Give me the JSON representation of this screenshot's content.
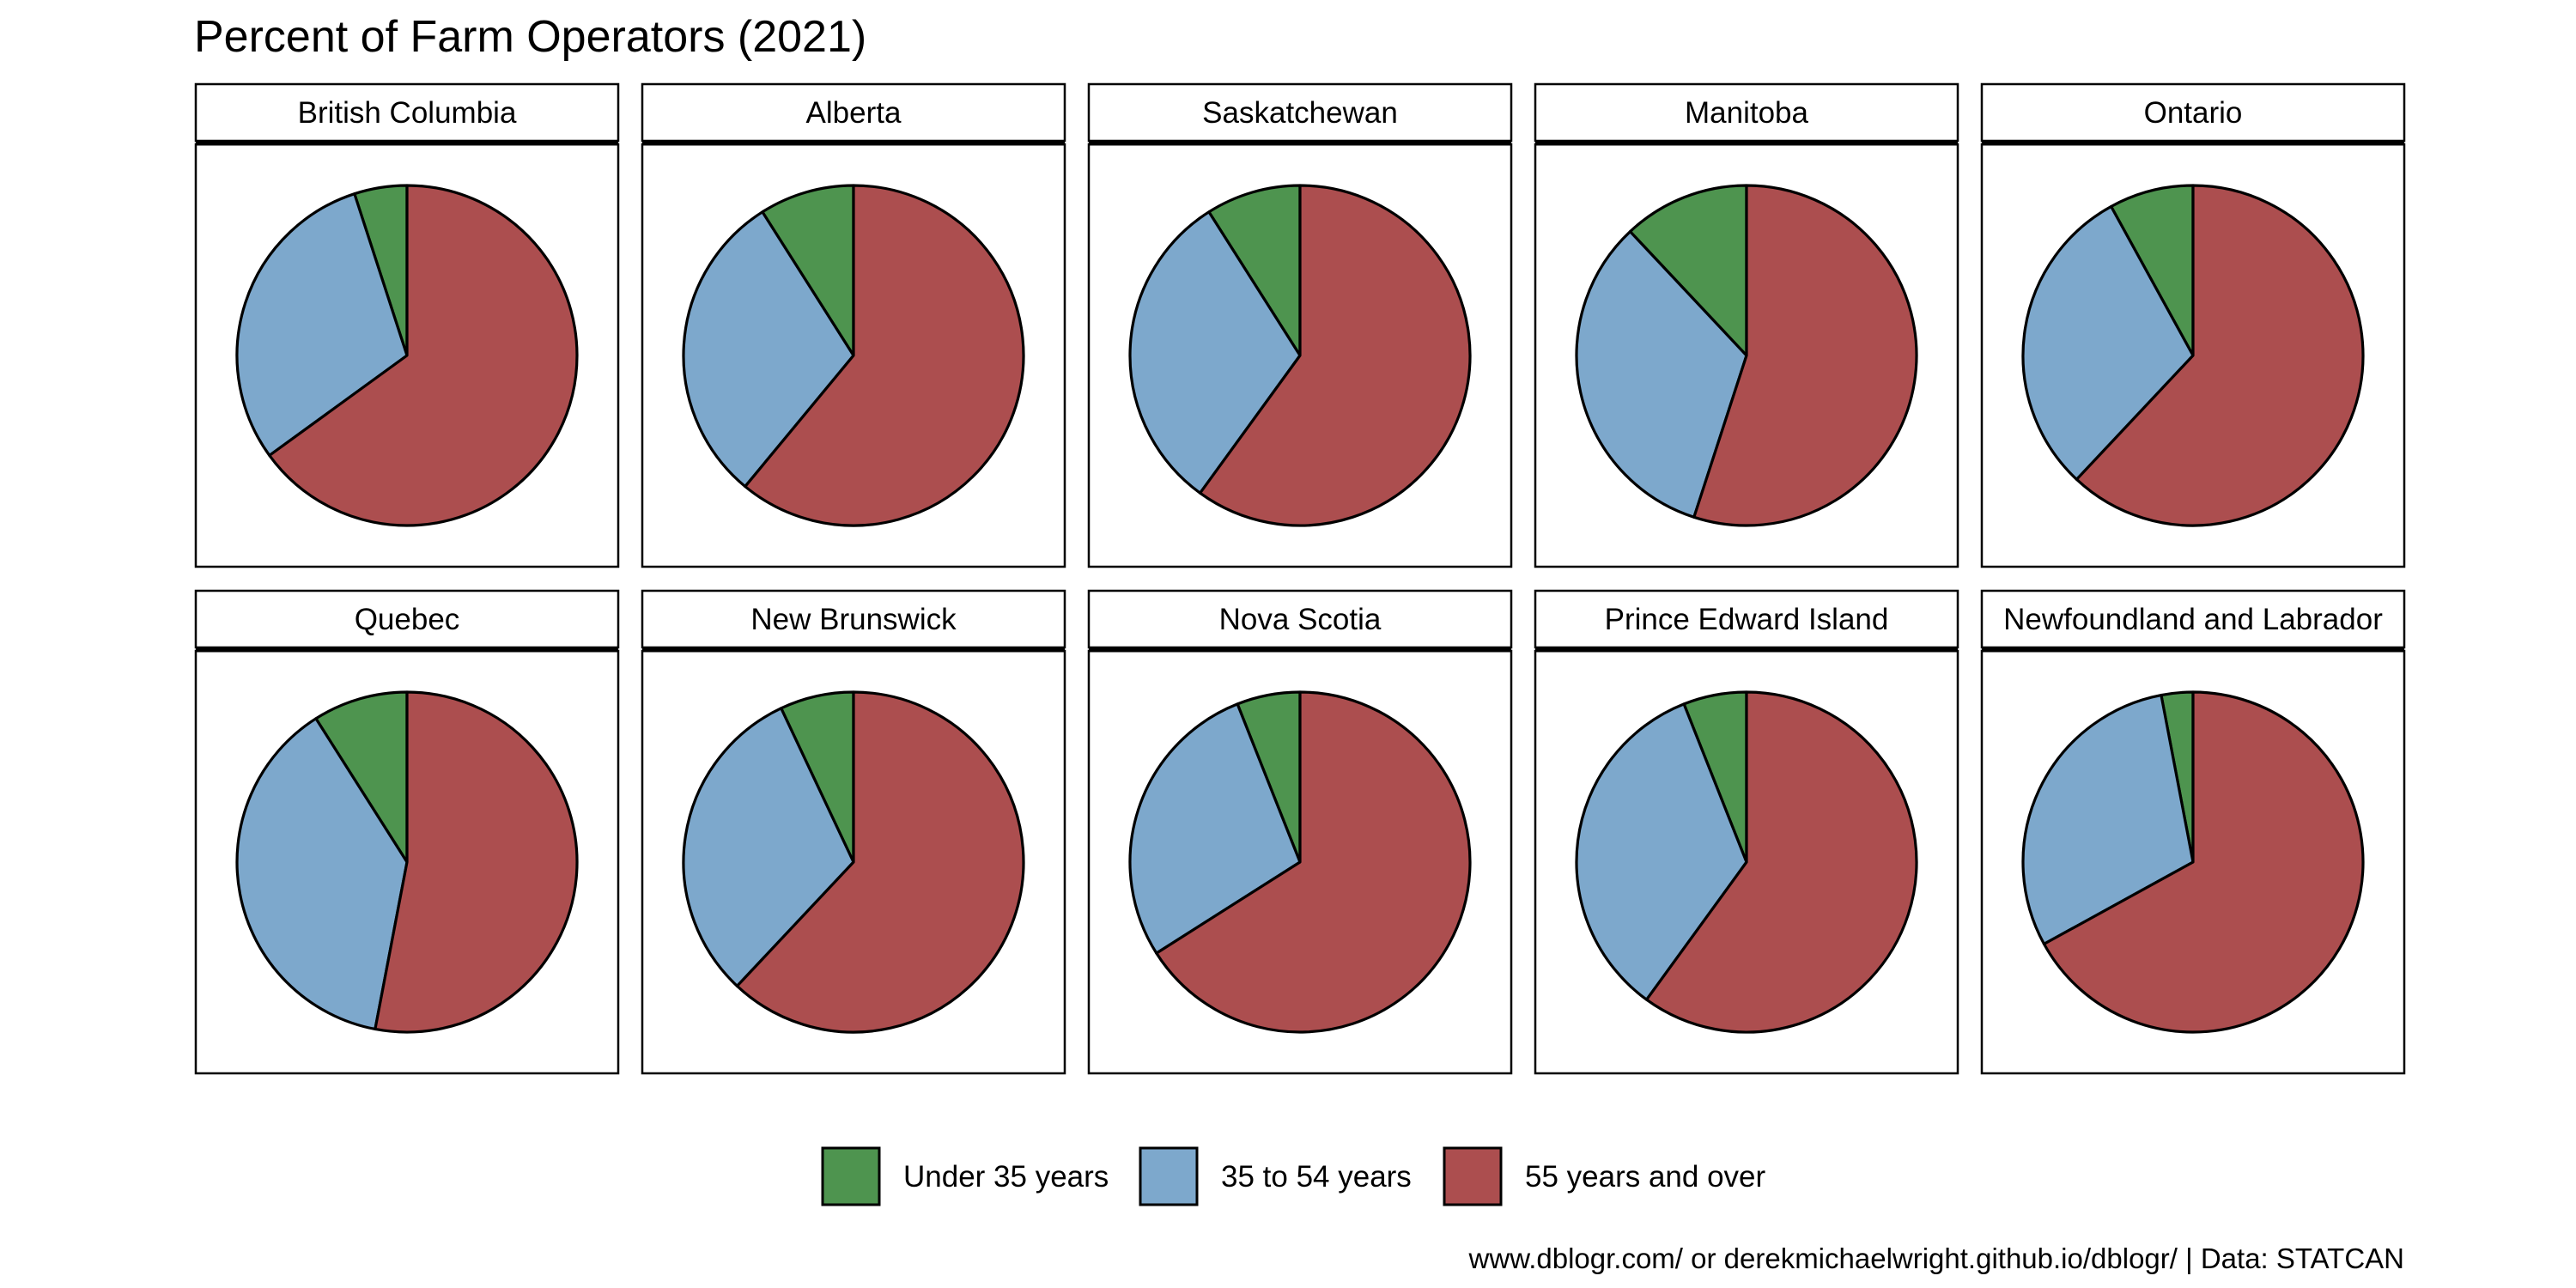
{
  "chart_data": {
    "type": "pie",
    "title": "Percent of Farm Operators (2021)",
    "caption": "www.dblogr.com/ or derekmichaelwright.github.io/dblogr/ | Data: STATCAN",
    "legend_position": "bottom",
    "categories": [
      "Under 35 years",
      "35 to 54 years",
      "55 years and over"
    ],
    "colors": [
      "#4e944f",
      "#7da8cc",
      "#ac4e4f"
    ],
    "facets": [
      {
        "name": "British Columbia",
        "values": [
          5,
          30,
          65
        ]
      },
      {
        "name": "Alberta",
        "values": [
          9,
          30,
          61
        ]
      },
      {
        "name": "Saskatchewan",
        "values": [
          9,
          31,
          60
        ]
      },
      {
        "name": "Manitoba",
        "values": [
          12,
          33,
          55
        ]
      },
      {
        "name": "Ontario",
        "values": [
          8,
          30,
          62
        ]
      },
      {
        "name": "Quebec",
        "values": [
          9,
          38,
          53
        ]
      },
      {
        "name": "New Brunswick",
        "values": [
          7,
          31,
          62
        ]
      },
      {
        "name": "Nova Scotia",
        "values": [
          6,
          28,
          66
        ]
      },
      {
        "name": "Prince Edward Island",
        "values": [
          6,
          34,
          60
        ]
      },
      {
        "name": "Newfoundland and Labrador",
        "values": [
          3,
          30,
          67
        ]
      }
    ]
  }
}
